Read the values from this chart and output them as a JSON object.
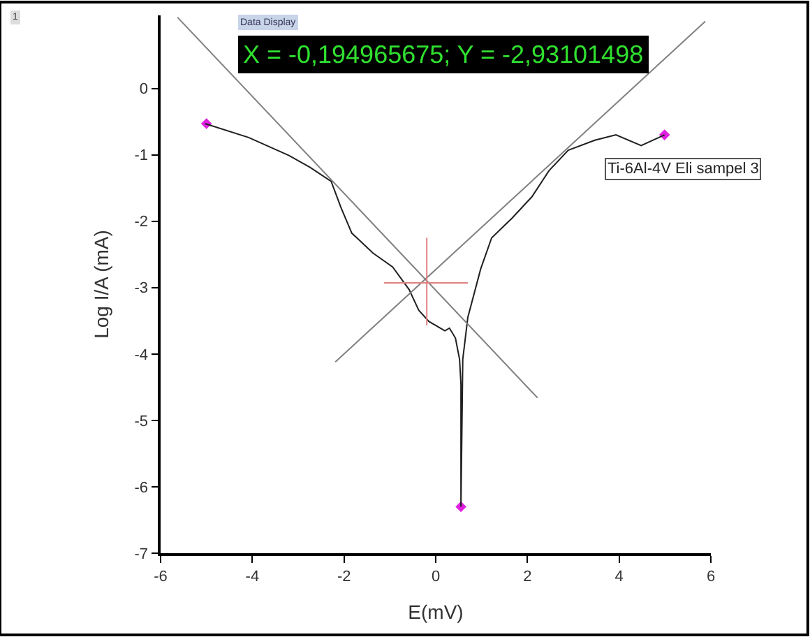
{
  "chart_data": {
    "type": "line",
    "xlabel": "E(mV)",
    "ylabel": "Log I/A (mA)",
    "xlim": [
      -6,
      6
    ],
    "xticks": [
      -6,
      -4,
      -2,
      0,
      2,
      4,
      6
    ],
    "ylim": [
      -7,
      1.1
    ],
    "yticks": [
      -7,
      -6,
      -5,
      -4,
      -3,
      -2,
      -1,
      0
    ],
    "line_style": "solid",
    "series": [
      {
        "color": "#202020",
        "x": [
          -5.03,
          -4.08,
          -3.2,
          -2.74,
          -2.28,
          -2.07,
          -1.83,
          -1.37,
          -0.94,
          -0.58,
          -0.37,
          -0.15,
          0.2,
          0.3,
          0.43,
          0.52,
          0.55,
          0.55,
          0.55,
          0.59,
          0.7,
          0.98,
          1.22,
          1.67,
          2.1,
          2.47,
          2.89,
          3.47,
          3.93,
          4.48,
          4.99
        ],
        "values": [
          -0.53,
          -0.74,
          -1.01,
          -1.19,
          -1.4,
          -1.79,
          -2.18,
          -2.48,
          -2.69,
          -3.03,
          -3.34,
          -3.51,
          -3.65,
          -3.61,
          -3.76,
          -4.08,
          -4.46,
          -5.95,
          -6.3,
          -4.08,
          -3.45,
          -2.72,
          -2.25,
          -1.95,
          -1.63,
          -1.24,
          -0.93,
          -0.78,
          -0.7,
          -0.86,
          -0.7
        ]
      },
      {
        "color": "#808080",
        "x": [
          -5.63,
          2.22
        ],
        "values": [
          1.07,
          -4.66
        ]
      },
      {
        "color": "#808080",
        "x": [
          -2.19,
          5.88
        ],
        "values": [
          -4.12,
          1.01
        ]
      },
      {
        "color": "#e08080",
        "x": [
          -1.13,
          0.7
        ],
        "values": [
          -2.93,
          -2.93
        ]
      },
      {
        "color": "#e08080",
        "x": [
          -0.195,
          -0.195
        ],
        "values": [
          -2.25,
          -3.57
        ]
      },
      {
        "type": "scatter",
        "marker": "diamond",
        "color": "#e020e0",
        "x": [
          -5.0,
          4.99,
          0.55
        ],
        "values": [
          -0.53,
          -0.7,
          -6.3
        ]
      }
    ],
    "annotations": [
      "1",
      "Data Display",
      "X = -0,194965675; Y = -2,93101498",
      "Ti-6Al-4V Eli sampel 3"
    ]
  }
}
